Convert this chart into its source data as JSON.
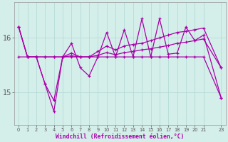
{
  "x": [
    0,
    1,
    2,
    3,
    4,
    5,
    6,
    7,
    8,
    9,
    10,
    11,
    12,
    13,
    14,
    15,
    16,
    17,
    18,
    19,
    20,
    21,
    23
  ],
  "line_spiky": [
    16.2,
    15.65,
    15.65,
    15.15,
    14.65,
    15.65,
    15.9,
    15.45,
    15.3,
    15.65,
    16.1,
    15.65,
    16.15,
    15.65,
    16.35,
    15.65,
    16.35,
    15.7,
    15.72,
    16.2,
    15.95,
    16.05,
    14.9
  ],
  "line_mid_upper": [
    16.2,
    15.65,
    15.65,
    15.65,
    15.65,
    15.65,
    15.72,
    15.65,
    15.65,
    15.75,
    15.85,
    15.78,
    15.85,
    15.88,
    15.9,
    15.95,
    16.0,
    16.05,
    16.1,
    16.12,
    16.15,
    16.18,
    15.45
  ],
  "line_mid_lower": [
    16.2,
    15.65,
    15.65,
    15.65,
    15.65,
    15.65,
    15.67,
    15.65,
    15.65,
    15.68,
    15.73,
    15.69,
    15.73,
    15.75,
    15.78,
    15.8,
    15.83,
    15.86,
    15.9,
    15.92,
    15.95,
    15.98,
    15.45
  ],
  "line_flat": [
    15.65,
    15.65,
    15.65,
    15.15,
    14.85,
    15.65,
    15.65,
    15.65,
    15.65,
    15.65,
    15.65,
    15.65,
    15.65,
    15.65,
    15.65,
    15.65,
    15.65,
    15.65,
    15.65,
    15.65,
    15.65,
    15.65,
    14.9
  ],
  "xlabel": "Windchill (Refroidissement éolien,°C)",
  "yticks": [
    15,
    16
  ],
  "ylim": [
    14.4,
    16.65
  ],
  "xlim": [
    -0.5,
    23.5
  ],
  "bg_color": "#d4eeea",
  "line_color": "#aa00aa",
  "grid_color": "#b0d8d4",
  "marker": "+"
}
